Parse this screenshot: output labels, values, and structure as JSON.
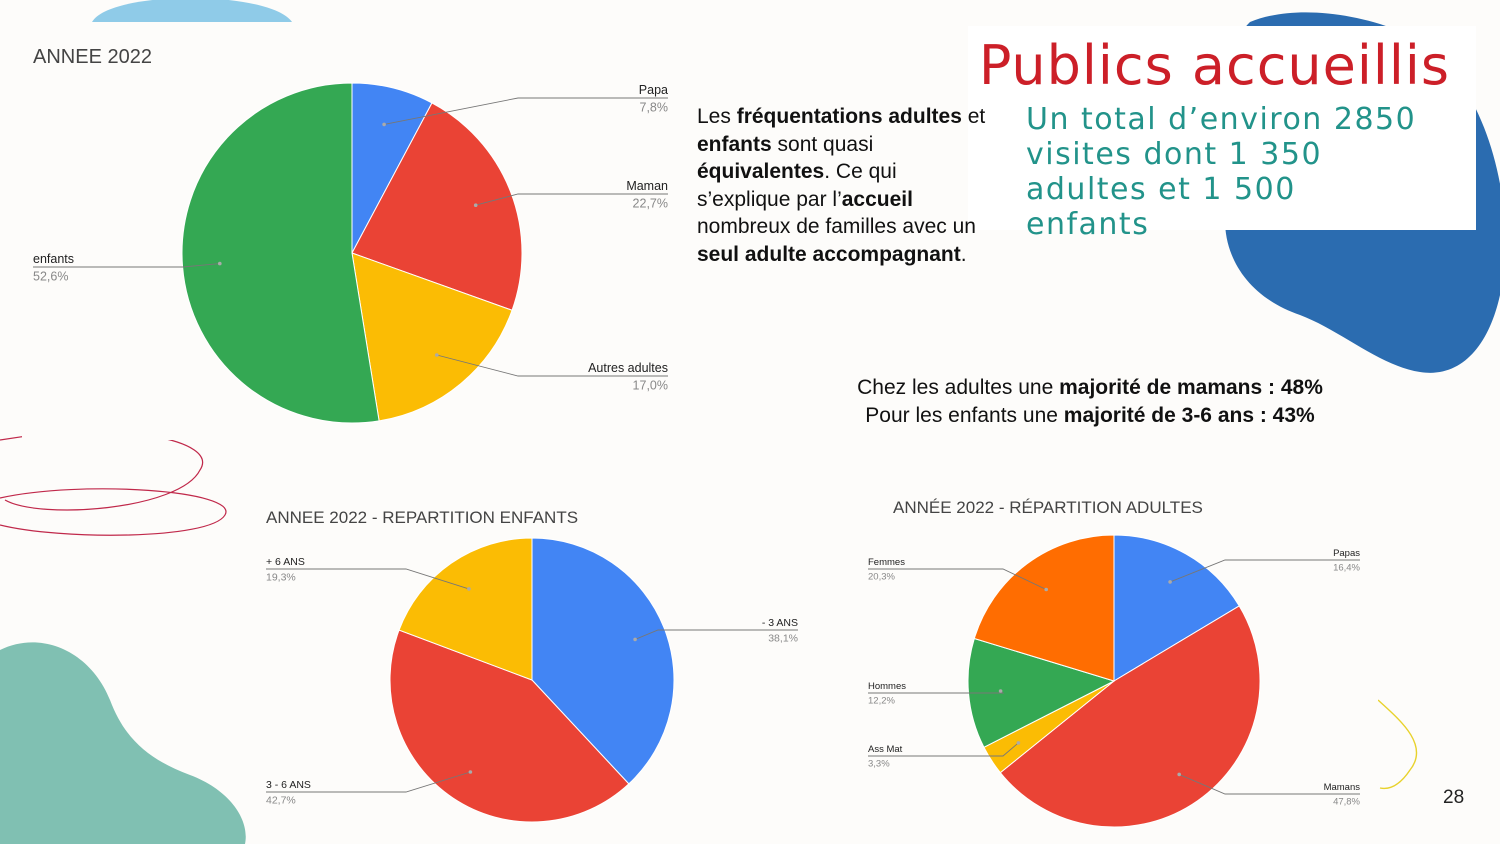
{
  "slide": {
    "title": "Publics accueillis",
    "subtitle": "Un total d’environ 2850 visites dont 1 350 adultes et 1 500 enfants",
    "paragraph": [
      {
        "t": "Les ",
        "b": false
      },
      {
        "t": "fréquentations adultes",
        "b": true
      },
      {
        "t": " et ",
        "b": false
      },
      {
        "t": "enfants",
        "b": true
      },
      {
        "t": " sont quasi ",
        "b": false
      },
      {
        "t": "équivalentes",
        "b": true
      },
      {
        "t": ". Ce qui s’explique par l’",
        "b": false
      },
      {
        "t": "accueil",
        "b": true
      },
      {
        "t": " nombreux de familles avec un ",
        "b": false
      },
      {
        "t": "seul adulte accompagnant",
        "b": true
      },
      {
        "t": ".",
        "b": false
      }
    ],
    "summary_line1": [
      {
        "t": "Chez les adultes une ",
        "b": false
      },
      {
        "t": "majorité de mamans : 48%",
        "b": true
      }
    ],
    "summary_line2": [
      {
        "t": "Pour les enfants une ",
        "b": false
      },
      {
        "t": "majorité de 3-6 ans : 43%",
        "b": true
      }
    ],
    "page_number": "28"
  },
  "colors": {
    "title": "#cc1f28",
    "subtitle": "#22938a",
    "blue": "#4285f4",
    "red": "#ea4335",
    "yellow": "#fbbc04",
    "green": "#34a853",
    "orange": "#ff6d01"
  },
  "chart_data": [
    {
      "type": "pie",
      "title": "ANNEE 2022",
      "slices": [
        {
          "label": "Papa",
          "value": 7.8,
          "display": "7,8%",
          "color": "#4285f4"
        },
        {
          "label": "Maman",
          "value": 22.7,
          "display": "22,7%",
          "color": "#ea4335"
        },
        {
          "label": "Autres adultes",
          "value": 17.0,
          "display": "17,0%",
          "color": "#fbbc04"
        },
        {
          "label": "enfants",
          "value": 52.6,
          "display": "52,6%",
          "color": "#34a853"
        }
      ]
    },
    {
      "type": "pie",
      "title": "ANNEE 2022 - REPARTITION ENFANTS",
      "slices": [
        {
          "label": "- 3 ANS",
          "value": 38.1,
          "display": "38,1%",
          "color": "#4285f4"
        },
        {
          "label": "3 - 6 ANS",
          "value": 42.7,
          "display": "42,7%",
          "color": "#ea4335"
        },
        {
          "label": "+ 6 ANS",
          "value": 19.3,
          "display": "19,3%",
          "color": "#fbbc04"
        }
      ]
    },
    {
      "type": "pie",
      "title": "ANNÉE 2022 - RÉPARTITION ADULTES",
      "slices": [
        {
          "label": "Papas",
          "value": 16.4,
          "display": "16,4%",
          "color": "#4285f4"
        },
        {
          "label": "Mamans",
          "value": 47.8,
          "display": "47,8%",
          "color": "#ea4335"
        },
        {
          "label": "Ass Mat",
          "value": 3.3,
          "display": "3,3%",
          "color": "#fbbc04"
        },
        {
          "label": "Hommes",
          "value": 12.2,
          "display": "12,2%",
          "color": "#34a853"
        },
        {
          "label": "Femmes",
          "value": 20.3,
          "display": "20,3%",
          "color": "#ff6d01"
        }
      ]
    }
  ]
}
